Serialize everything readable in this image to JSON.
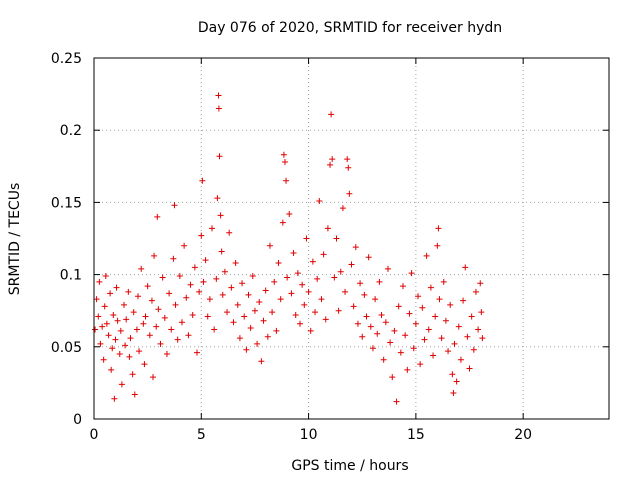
{
  "chart_data": {
    "type": "scatter",
    "title": "Day 076 of 2020, SRMTID for receiver hydn",
    "xlabel": "GPS time / hours",
    "ylabel": "SRMTID / TECUs",
    "xlim": [
      0,
      24
    ],
    "ylim": [
      0,
      0.25
    ],
    "x_ticks": [
      0,
      5,
      10,
      15,
      20
    ],
    "x_tick_labels": [
      "0",
      "5",
      "10",
      "15",
      "20"
    ],
    "y_ticks": [
      0,
      0.05,
      0.1,
      0.15,
      0.2,
      0.25
    ],
    "y_tick_labels": [
      "0",
      "0.05",
      "0.1",
      "0.15",
      "0.2",
      "0.25"
    ],
    "grid": true,
    "marker": "+",
    "series_color": "#e00000",
    "x_data_range": [
      0,
      18.1
    ],
    "series": [
      {
        "name": "SRMTID",
        "points": [
          [
            0.05,
            0.062
          ],
          [
            0.12,
            0.083
          ],
          [
            0.2,
            0.071
          ],
          [
            0.25,
            0.095
          ],
          [
            0.3,
            0.052
          ],
          [
            0.38,
            0.064
          ],
          [
            0.45,
            0.041
          ],
          [
            0.5,
            0.078
          ],
          [
            0.55,
            0.099
          ],
          [
            0.6,
            0.066
          ],
          [
            0.68,
            0.058
          ],
          [
            0.75,
            0.087
          ],
          [
            0.8,
            0.034
          ],
          [
            0.85,
            0.049
          ],
          [
            0.9,
            0.072
          ],
          [
            0.95,
            0.014
          ],
          [
            1.0,
            0.055
          ],
          [
            1.05,
            0.091
          ],
          [
            1.1,
            0.068
          ],
          [
            1.2,
            0.045
          ],
          [
            1.25,
            0.061
          ],
          [
            1.3,
            0.024
          ],
          [
            1.4,
            0.079
          ],
          [
            1.45,
            0.051
          ],
          [
            1.5,
            0.069
          ],
          [
            1.6,
            0.088
          ],
          [
            1.65,
            0.043
          ],
          [
            1.7,
            0.056
          ],
          [
            1.8,
            0.031
          ],
          [
            1.85,
            0.074
          ],
          [
            1.9,
            0.017
          ],
          [
            2.0,
            0.062
          ],
          [
            2.05,
            0.085
          ],
          [
            2.1,
            0.047
          ],
          [
            2.2,
            0.104
          ],
          [
            2.3,
            0.066
          ],
          [
            2.35,
            0.038
          ],
          [
            2.4,
            0.071
          ],
          [
            2.5,
            0.092
          ],
          [
            2.6,
            0.058
          ],
          [
            2.7,
            0.082
          ],
          [
            2.75,
            0.029
          ],
          [
            2.8,
            0.113
          ],
          [
            2.9,
            0.064
          ],
          [
            2.95,
            0.14
          ],
          [
            3.0,
            0.076
          ],
          [
            3.1,
            0.052
          ],
          [
            3.2,
            0.098
          ],
          [
            3.3,
            0.07
          ],
          [
            3.4,
            0.045
          ],
          [
            3.5,
            0.087
          ],
          [
            3.6,
            0.062
          ],
          [
            3.7,
            0.111
          ],
          [
            3.75,
            0.148
          ],
          [
            3.8,
            0.079
          ],
          [
            3.9,
            0.055
          ],
          [
            4.0,
            0.099
          ],
          [
            4.1,
            0.067
          ],
          [
            4.2,
            0.12
          ],
          [
            4.3,
            0.084
          ],
          [
            4.4,
            0.058
          ],
          [
            4.5,
            0.093
          ],
          [
            4.6,
            0.072
          ],
          [
            4.7,
            0.105
          ],
          [
            4.8,
            0.046
          ],
          [
            4.9,
            0.088
          ],
          [
            5.0,
            0.127
          ],
          [
            5.05,
            0.165
          ],
          [
            5.1,
            0.095
          ],
          [
            5.2,
            0.11
          ],
          [
            5.3,
            0.071
          ],
          [
            5.4,
            0.083
          ],
          [
            5.5,
            0.132
          ],
          [
            5.6,
            0.062
          ],
          [
            5.7,
            0.097
          ],
          [
            5.75,
            0.153
          ],
          [
            5.8,
            0.224
          ],
          [
            5.82,
            0.215
          ],
          [
            5.85,
            0.182
          ],
          [
            5.9,
            0.141
          ],
          [
            5.95,
            0.116
          ],
          [
            6.0,
            0.086
          ],
          [
            6.1,
            0.102
          ],
          [
            6.2,
            0.074
          ],
          [
            6.3,
            0.129
          ],
          [
            6.4,
            0.091
          ],
          [
            6.5,
            0.067
          ],
          [
            6.6,
            0.108
          ],
          [
            6.7,
            0.079
          ],
          [
            6.8,
            0.056
          ],
          [
            6.9,
            0.094
          ],
          [
            7.0,
            0.071
          ],
          [
            7.1,
            0.048
          ],
          [
            7.2,
            0.086
          ],
          [
            7.3,
            0.063
          ],
          [
            7.4,
            0.099
          ],
          [
            7.5,
            0.075
          ],
          [
            7.6,
            0.052
          ],
          [
            7.7,
            0.081
          ],
          [
            7.8,
            0.04
          ],
          [
            7.9,
            0.068
          ],
          [
            8.0,
            0.089
          ],
          [
            8.1,
            0.057
          ],
          [
            8.2,
            0.12
          ],
          [
            8.3,
            0.074
          ],
          [
            8.4,
            0.095
          ],
          [
            8.5,
            0.061
          ],
          [
            8.6,
            0.108
          ],
          [
            8.7,
            0.083
          ],
          [
            8.8,
            0.136
          ],
          [
            8.85,
            0.183
          ],
          [
            8.9,
            0.178
          ],
          [
            8.95,
            0.165
          ],
          [
            9.0,
            0.098
          ],
          [
            9.1,
            0.142
          ],
          [
            9.2,
            0.087
          ],
          [
            9.3,
            0.115
          ],
          [
            9.4,
            0.072
          ],
          [
            9.5,
            0.101
          ],
          [
            9.6,
            0.066
          ],
          [
            9.7,
            0.093
          ],
          [
            9.8,
            0.079
          ],
          [
            9.9,
            0.125
          ],
          [
            10.0,
            0.088
          ],
          [
            10.1,
            0.061
          ],
          [
            10.2,
            0.109
          ],
          [
            10.3,
            0.074
          ],
          [
            10.4,
            0.097
          ],
          [
            10.5,
            0.151
          ],
          [
            10.6,
            0.083
          ],
          [
            10.7,
            0.114
          ],
          [
            10.8,
            0.069
          ],
          [
            10.9,
            0.132
          ],
          [
            11.0,
            0.176
          ],
          [
            11.05,
            0.211
          ],
          [
            11.1,
            0.18
          ],
          [
            11.2,
            0.098
          ],
          [
            11.3,
            0.125
          ],
          [
            11.4,
            0.075
          ],
          [
            11.5,
            0.102
          ],
          [
            11.6,
            0.146
          ],
          [
            11.7,
            0.088
          ],
          [
            11.8,
            0.18
          ],
          [
            11.85,
            0.174
          ],
          [
            11.9,
            0.156
          ],
          [
            12.0,
            0.107
          ],
          [
            12.1,
            0.078
          ],
          [
            12.2,
            0.119
          ],
          [
            12.3,
            0.066
          ],
          [
            12.4,
            0.094
          ],
          [
            12.5,
            0.057
          ],
          [
            12.6,
            0.086
          ],
          [
            12.7,
            0.071
          ],
          [
            12.8,
            0.112
          ],
          [
            12.9,
            0.064
          ],
          [
            13.0,
            0.049
          ],
          [
            13.1,
            0.083
          ],
          [
            13.2,
            0.059
          ],
          [
            13.3,
            0.095
          ],
          [
            13.4,
            0.072
          ],
          [
            13.5,
            0.041
          ],
          [
            13.6,
            0.067
          ],
          [
            13.7,
            0.104
          ],
          [
            13.8,
            0.053
          ],
          [
            13.9,
            0.029
          ],
          [
            14.0,
            0.061
          ],
          [
            14.1,
            0.012
          ],
          [
            14.2,
            0.078
          ],
          [
            14.3,
            0.046
          ],
          [
            14.4,
            0.092
          ],
          [
            14.5,
            0.058
          ],
          [
            14.6,
            0.034
          ],
          [
            14.7,
            0.073
          ],
          [
            14.8,
            0.101
          ],
          [
            14.9,
            0.049
          ],
          [
            15.0,
            0.066
          ],
          [
            15.1,
            0.085
          ],
          [
            15.2,
            0.038
          ],
          [
            15.3,
            0.077
          ],
          [
            15.4,
            0.055
          ],
          [
            15.5,
            0.113
          ],
          [
            15.6,
            0.062
          ],
          [
            15.7,
            0.091
          ],
          [
            15.8,
            0.044
          ],
          [
            15.9,
            0.071
          ],
          [
            16.0,
            0.12
          ],
          [
            16.05,
            0.132
          ],
          [
            16.1,
            0.083
          ],
          [
            16.2,
            0.056
          ],
          [
            16.3,
            0.095
          ],
          [
            16.4,
            0.068
          ],
          [
            16.5,
            0.047
          ],
          [
            16.6,
            0.079
          ],
          [
            16.7,
            0.031
          ],
          [
            16.75,
            0.018
          ],
          [
            16.8,
            0.052
          ],
          [
            16.9,
            0.026
          ],
          [
            17.0,
            0.064
          ],
          [
            17.1,
            0.041
          ],
          [
            17.2,
            0.082
          ],
          [
            17.3,
            0.105
          ],
          [
            17.4,
            0.057
          ],
          [
            17.5,
            0.035
          ],
          [
            17.6,
            0.071
          ],
          [
            17.7,
            0.048
          ],
          [
            17.8,
            0.088
          ],
          [
            17.9,
            0.062
          ],
          [
            18.0,
            0.094
          ],
          [
            18.05,
            0.074
          ],
          [
            18.1,
            0.056
          ]
        ]
      }
    ]
  }
}
